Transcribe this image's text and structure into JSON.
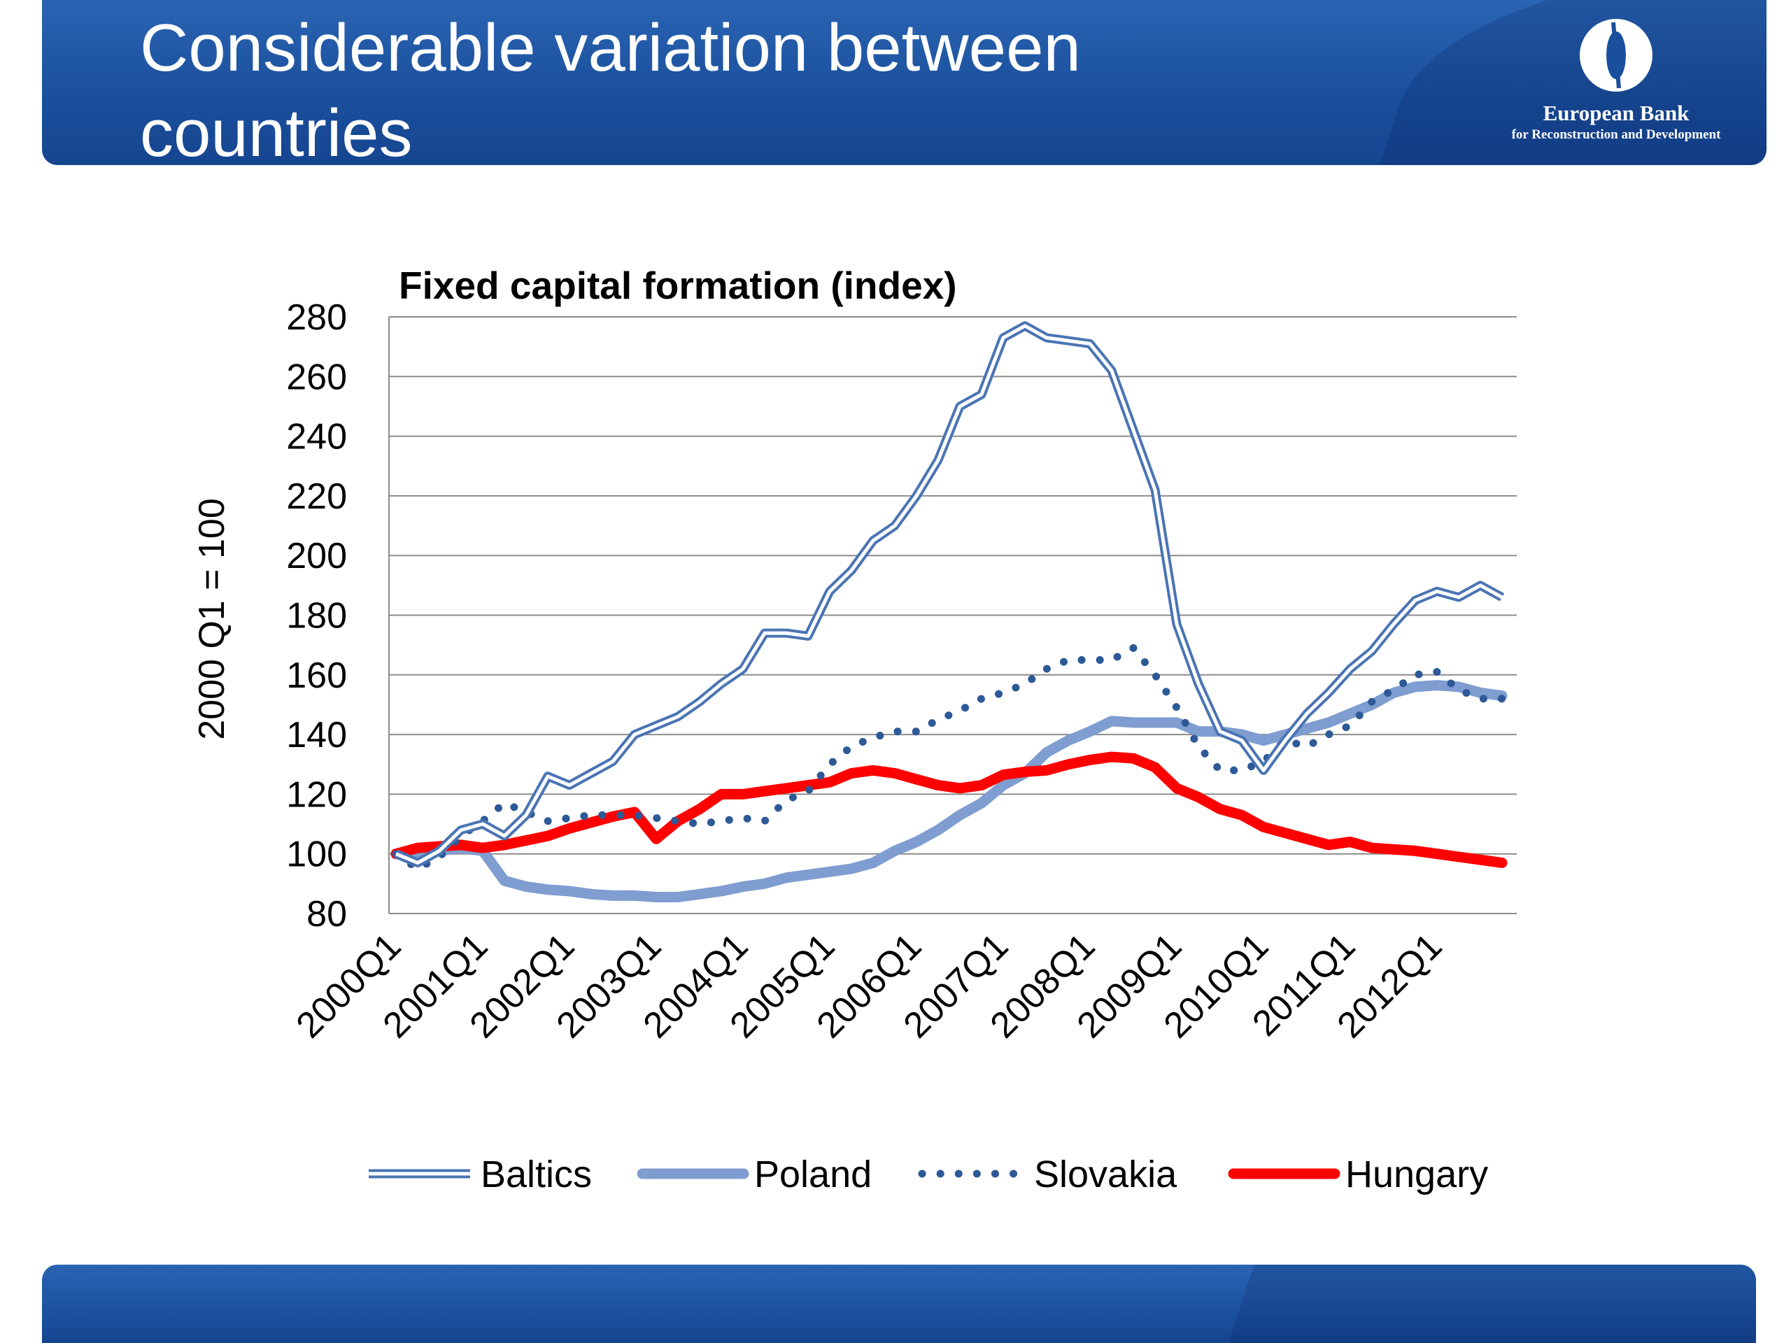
{
  "slide": {
    "title": "Considerable variation between countries",
    "logo_name": "European Bank",
    "logo_sub": "for Reconstruction and Development"
  },
  "colors": {
    "header": "#1a4f9c",
    "baltics": "#4a74b4",
    "poland": "#7f9dd0",
    "slovakia": "#2d5a97",
    "hungary": "#ff0000",
    "gridline": "#8c8c8c"
  },
  "chart_data": {
    "type": "line",
    "title": "Fixed capital formation (index)",
    "xlabel": "",
    "ylabel": "2000 Q1 = 100",
    "ylim": [
      80,
      280
    ],
    "yticks": [
      80,
      100,
      120,
      140,
      160,
      180,
      200,
      220,
      240,
      260,
      280
    ],
    "x_tick_labels": [
      "2000Q1",
      "2001Q1",
      "2002Q1",
      "2003Q1",
      "2004Q1",
      "2005Q1",
      "2006Q1",
      "2007Q1",
      "2008Q1",
      "2009Q1",
      "2010Q1",
      "2011Q1",
      "2012Q1"
    ],
    "x_start": "2000Q1",
    "n_quarters": 52,
    "grid": true,
    "legend_position": "bottom",
    "series": [
      {
        "name": "Baltics",
        "style": "double-line",
        "values": [
          100,
          97,
          101,
          108,
          110,
          106,
          113,
          126,
          123,
          127,
          131,
          140,
          143,
          146,
          151,
          157,
          162,
          174,
          174,
          173,
          188,
          195,
          205,
          210,
          220,
          232,
          250,
          254,
          273,
          277,
          273,
          272,
          271,
          262,
          242,
          222,
          177,
          157,
          141,
          138,
          128,
          138,
          147,
          154,
          162,
          168,
          177,
          185,
          188,
          186,
          190,
          186
        ]
      },
      {
        "name": "Poland",
        "style": "thick",
        "values": [
          100,
          100,
          101,
          102,
          101,
          91,
          89,
          88,
          87.5,
          86.5,
          86,
          86,
          85.5,
          85.5,
          86.5,
          87.5,
          89,
          90,
          92,
          93,
          94,
          95,
          97,
          101,
          104,
          108,
          113,
          117,
          123,
          127,
          134,
          138,
          141,
          144.5,
          144,
          144,
          144,
          141,
          141,
          140,
          138,
          140,
          142,
          144,
          147,
          150,
          154,
          156,
          156.5,
          156,
          154,
          153
        ]
      },
      {
        "name": "Slovakia",
        "style": "dotted",
        "values": [
          100,
          95,
          99,
          106,
          111,
          117,
          114,
          111,
          112,
          113,
          113,
          113,
          112,
          111,
          110,
          111,
          112,
          111,
          118,
          121,
          130,
          136,
          139,
          141,
          141,
          145,
          148,
          152,
          154,
          157,
          162,
          165,
          165,
          165,
          169,
          160,
          149,
          136,
          128,
          128,
          131,
          138,
          136,
          140,
          143,
          151,
          155,
          160,
          161,
          155,
          152,
          152
        ]
      },
      {
        "name": "Hungary",
        "style": "thick-red",
        "values": [
          100,
          102,
          102.5,
          103,
          102,
          103,
          104.5,
          106,
          108.5,
          110.5,
          112.5,
          114,
          105,
          111,
          115,
          120,
          120,
          121,
          122,
          123,
          124,
          127,
          128,
          127,
          125,
          123,
          122,
          123,
          126.5,
          127.5,
          128,
          130,
          131.5,
          132.5,
          132,
          129,
          122,
          119,
          115,
          113,
          109,
          107,
          105,
          103,
          104,
          102,
          101.5,
          101,
          100,
          99,
          98,
          97
        ]
      }
    ]
  }
}
